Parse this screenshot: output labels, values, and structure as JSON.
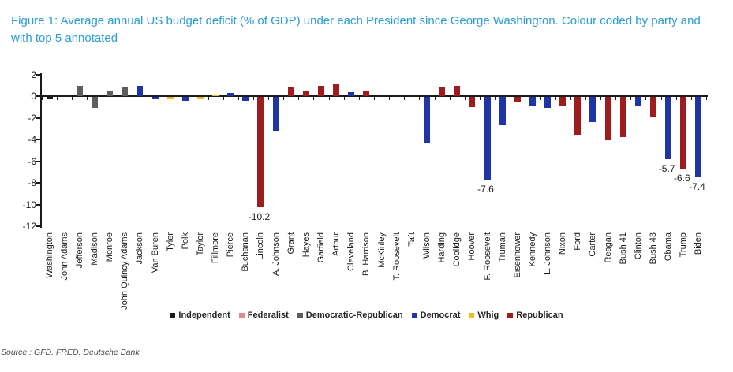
{
  "figure": {
    "title": "Figure 1: Average annual US budget deficit (% of GDP) under each President since George Washington. Colour coded by party and with top 5 annotated",
    "source": "Source : GFD, FRED, Deutsche Bank"
  },
  "colors": {
    "title_blue": "#2B9CD8",
    "axis": "#1a1a1a",
    "Independent": "#1a1a1a",
    "Federalist": "#DE8B85",
    "Democratic-Republican": "#5E5E5E",
    "Democrat": "#1F35A5",
    "Whig": "#EFBE1D",
    "Republican": "#9E1B1E"
  },
  "chart_data": {
    "type": "bar",
    "title": "Figure 1: Average annual US budget deficit (% of GDP) under each President since George Washington. Colour coded by party and with top 5 annotated",
    "xlabel": "",
    "ylabel": "",
    "ylim": [
      -12,
      2
    ],
    "yticks": [
      2,
      0,
      -2,
      -4,
      -6,
      -8,
      -10,
      -12
    ],
    "grid": false,
    "legend_position": "bottom",
    "legend": [
      "Independent",
      "Federalist",
      "Democratic-Republican",
      "Democrat",
      "Whig",
      "Republican"
    ],
    "bars": [
      {
        "president": "Washington",
        "party": "Independent",
        "value": -0.15
      },
      {
        "president": "John Adams",
        "party": "Federalist",
        "value": 0.0
      },
      {
        "president": "Jefferson",
        "party": "Democratic-Republican",
        "value": 1.0
      },
      {
        "president": "Madison",
        "party": "Democratic-Republican",
        "value": -1.0
      },
      {
        "president": "Monroe",
        "party": "Democratic-Republican",
        "value": 0.5
      },
      {
        "president": "John Quincy Adams",
        "party": "Democratic-Republican",
        "value": 0.9
      },
      {
        "president": "Jackson",
        "party": "Democrat",
        "value": 1.0
      },
      {
        "president": "Van Buren",
        "party": "Democrat",
        "value": -0.2
      },
      {
        "president": "Tyler",
        "party": "Whig",
        "value": -0.2
      },
      {
        "president": "Polk",
        "party": "Democrat",
        "value": -0.3
      },
      {
        "president": "Taylor",
        "party": "Whig",
        "value": -0.15
      },
      {
        "president": "Fillmore",
        "party": "Whig",
        "value": 0.2
      },
      {
        "president": "Pierce",
        "party": "Democrat",
        "value": 0.3
      },
      {
        "president": "Buchanan",
        "party": "Democrat",
        "value": -0.3
      },
      {
        "president": "Lincoln",
        "party": "Republican",
        "value": -10.2,
        "annotation": "-10.2"
      },
      {
        "president": "A. Johnson",
        "party": "Democrat",
        "value": -3.1
      },
      {
        "president": "Grant",
        "party": "Republican",
        "value": 0.8
      },
      {
        "president": "Hayes",
        "party": "Republican",
        "value": 0.5
      },
      {
        "president": "Garfield",
        "party": "Republican",
        "value": 1.0
      },
      {
        "president": "Arthur",
        "party": "Republican",
        "value": 1.2
      },
      {
        "president": "Cleveland",
        "party": "Democrat",
        "value": 0.4
      },
      {
        "president": "B. Harrison",
        "party": "Republican",
        "value": 0.5
      },
      {
        "president": "McKinley",
        "party": "Republican",
        "value": 0.0
      },
      {
        "president": "T. Roosevelt",
        "party": "Republican",
        "value": 0.0
      },
      {
        "president": "Taft",
        "party": "Republican",
        "value": 0.0
      },
      {
        "president": "Wilson",
        "party": "Democrat",
        "value": -4.2
      },
      {
        "president": "Harding",
        "party": "Republican",
        "value": 0.9
      },
      {
        "president": "Coolidge",
        "party": "Republican",
        "value": 1.0
      },
      {
        "president": "Hoover",
        "party": "Republican",
        "value": -0.9
      },
      {
        "president": "F. Roosevelt",
        "party": "Democrat",
        "value": -7.6,
        "annotation": "-7.6"
      },
      {
        "president": "Truman",
        "party": "Democrat",
        "value": -2.6
      },
      {
        "president": "Eisenhower",
        "party": "Republican",
        "value": -0.5
      },
      {
        "president": "Kennedy",
        "party": "Democrat",
        "value": -0.8
      },
      {
        "president": "L. Johnson",
        "party": "Democrat",
        "value": -1.0
      },
      {
        "president": "Nixon",
        "party": "Republican",
        "value": -0.8
      },
      {
        "president": "Ford",
        "party": "Republican",
        "value": -3.5
      },
      {
        "president": "Carter",
        "party": "Democrat",
        "value": -2.3
      },
      {
        "president": "Reagan",
        "party": "Republican",
        "value": -4.0
      },
      {
        "president": "Bush 41",
        "party": "Republican",
        "value": -3.7
      },
      {
        "president": "Clinton",
        "party": "Democrat",
        "value": -0.8
      },
      {
        "president": "Bush 43",
        "party": "Republican",
        "value": -1.8
      },
      {
        "president": "Obama",
        "party": "Democrat",
        "value": -5.7,
        "annotation": "-5.7"
      },
      {
        "president": "Trump",
        "party": "Republican",
        "value": -6.6,
        "annotation": "-6.6"
      },
      {
        "president": "Biden",
        "party": "Democrat",
        "value": -7.4,
        "annotation": "-7.4"
      }
    ]
  }
}
